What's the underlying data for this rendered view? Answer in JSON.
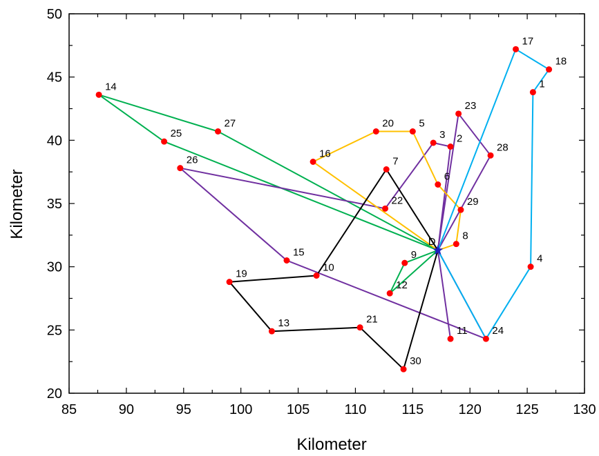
{
  "chart_data": {
    "type": "scatter",
    "title": "",
    "xlabel": "Kilometer",
    "ylabel": "Kilometer",
    "xlim": [
      85,
      130
    ],
    "ylim": [
      20,
      50
    ],
    "x_ticks": [
      "85",
      "90",
      "95",
      "100",
      "105",
      "110",
      "115",
      "120",
      "125",
      "130"
    ],
    "y_ticks": [
      "20",
      "25",
      "30",
      "35",
      "40",
      "45",
      "50"
    ],
    "depot": {
      "label": "D",
      "x": 117.2,
      "y": 31.3,
      "color": "#1f1fbf"
    },
    "point_color": "#ff0000",
    "points": [
      {
        "id": "1",
        "x": 125.5,
        "y": 43.8
      },
      {
        "id": "2",
        "x": 118.3,
        "y": 39.5
      },
      {
        "id": "3",
        "x": 116.8,
        "y": 39.8
      },
      {
        "id": "4",
        "x": 125.3,
        "y": 30.0
      },
      {
        "id": "5",
        "x": 115.0,
        "y": 40.7
      },
      {
        "id": "6",
        "x": 117.2,
        "y": 36.5
      },
      {
        "id": "7",
        "x": 112.7,
        "y": 37.7
      },
      {
        "id": "8",
        "x": 118.8,
        "y": 31.8
      },
      {
        "id": "9",
        "x": 114.3,
        "y": 30.3
      },
      {
        "id": "10",
        "x": 106.6,
        "y": 29.3
      },
      {
        "id": "11",
        "x": 118.3,
        "y": 24.3
      },
      {
        "id": "12",
        "x": 113.0,
        "y": 27.9
      },
      {
        "id": "13",
        "x": 102.7,
        "y": 24.9
      },
      {
        "id": "14",
        "x": 87.6,
        "y": 43.6
      },
      {
        "id": "15",
        "x": 104.0,
        "y": 30.5
      },
      {
        "id": "16",
        "x": 106.3,
        "y": 38.3
      },
      {
        "id": "17",
        "x": 124.0,
        "y": 47.2
      },
      {
        "id": "18",
        "x": 126.9,
        "y": 45.6
      },
      {
        "id": "19",
        "x": 99.0,
        "y": 28.8
      },
      {
        "id": "20",
        "x": 111.8,
        "y": 40.7
      },
      {
        "id": "21",
        "x": 110.4,
        "y": 25.2
      },
      {
        "id": "22",
        "x": 112.6,
        "y": 34.6
      },
      {
        "id": "23",
        "x": 119.0,
        "y": 42.1
      },
      {
        "id": "24",
        "x": 121.4,
        "y": 24.3
      },
      {
        "id": "25",
        "x": 93.3,
        "y": 39.9
      },
      {
        "id": "26",
        "x": 94.7,
        "y": 37.8
      },
      {
        "id": "27",
        "x": 98.0,
        "y": 40.7
      },
      {
        "id": "28",
        "x": 121.8,
        "y": 38.8
      },
      {
        "id": "29",
        "x": 119.2,
        "y": 34.5
      },
      {
        "id": "30",
        "x": 114.2,
        "y": 21.9
      }
    ],
    "routes": [
      {
        "color": "#00b050",
        "stops": [
          "D",
          "9",
          "12",
          "D",
          "25",
          "14",
          "27",
          "D"
        ]
      },
      {
        "color": "#7030a0",
        "stops": [
          "D",
          "11",
          "D",
          "2",
          "3",
          "22",
          "26",
          "15",
          "24",
          "D",
          "23",
          "28",
          "D"
        ]
      },
      {
        "color": "#ffc000",
        "stops": [
          "D",
          "8",
          "29",
          "6",
          "5",
          "20",
          "16",
          "D"
        ]
      },
      {
        "color": "#000000",
        "stops": [
          "D",
          "7",
          "10",
          "19",
          "13",
          "21",
          "30",
          "D"
        ]
      },
      {
        "color": "#00b0f0",
        "stops": [
          "D",
          "17",
          "18",
          "1",
          "4",
          "24",
          "D"
        ]
      }
    ]
  }
}
